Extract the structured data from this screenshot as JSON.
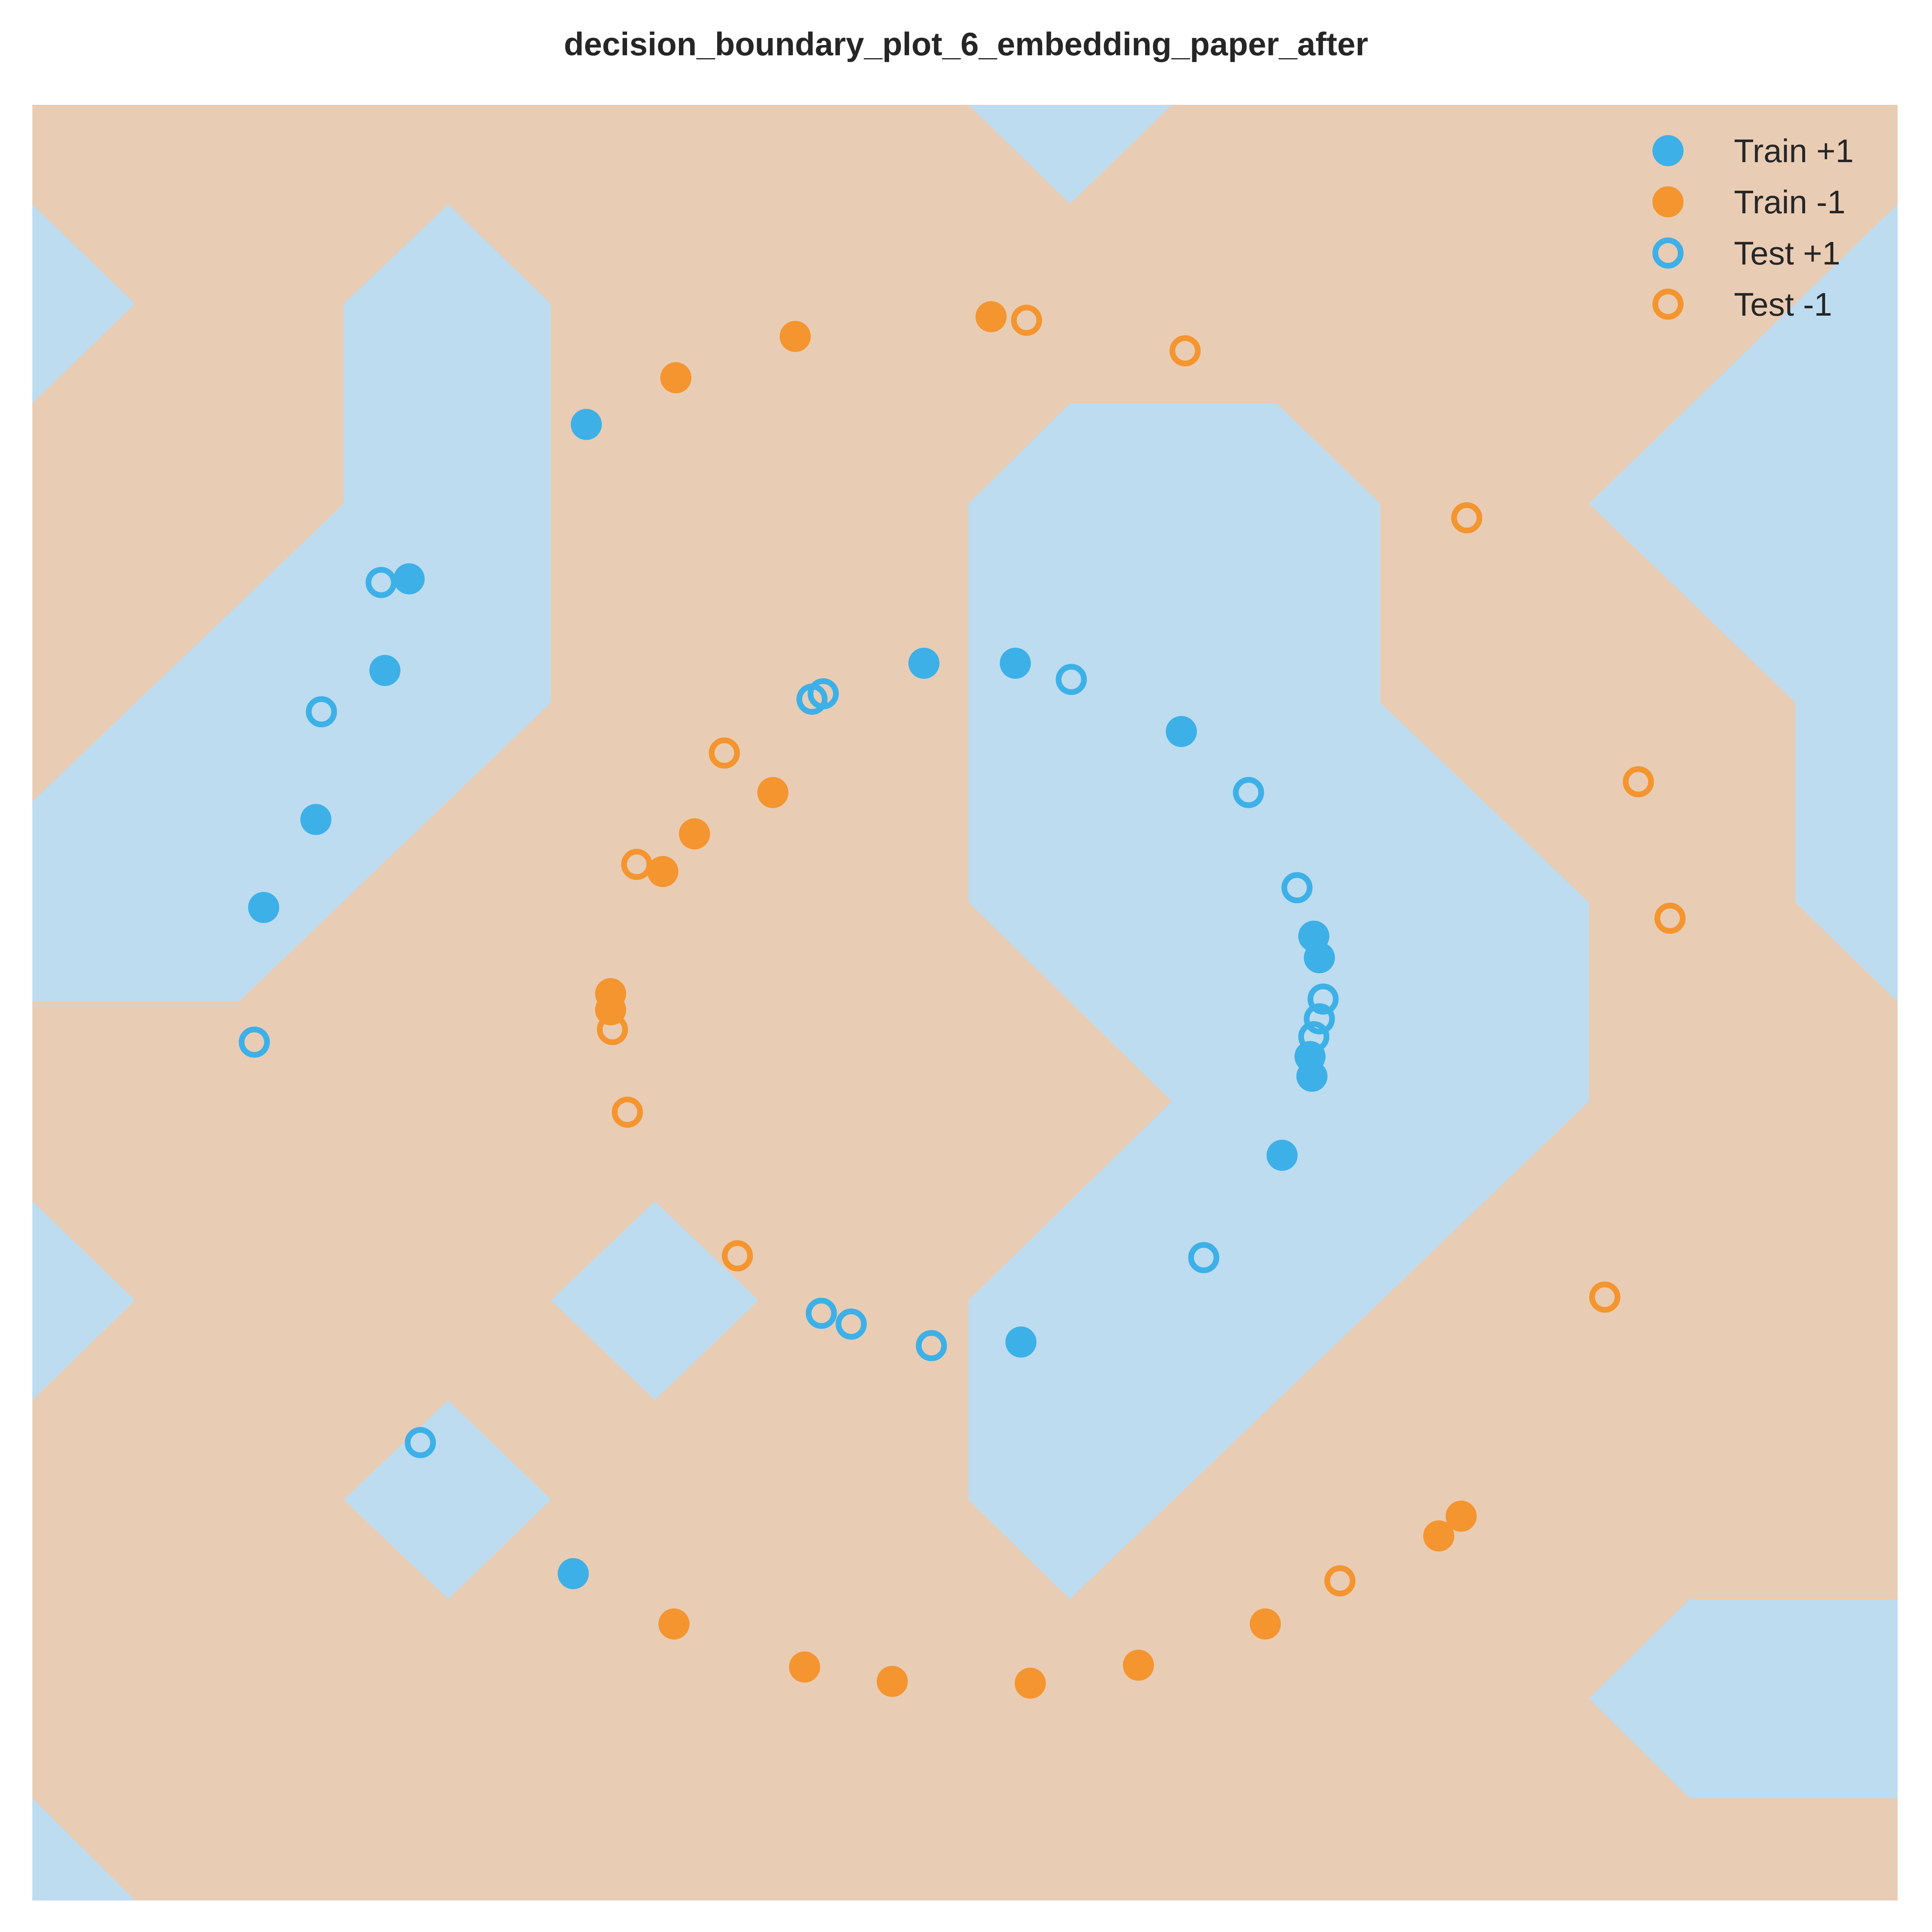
{
  "chart_data": {
    "type": "scatter",
    "title": "decision_boundary_plot_6_embedding_paper_after",
    "xlabel": "",
    "ylabel": "",
    "xlim": [
      0,
      1
    ],
    "ylim": [
      0,
      1
    ],
    "grid": false,
    "legend_position": "top-right",
    "colors": {
      "pos": "#3db0e8",
      "neg": "#f4952f",
      "region_pos": "#bddcef",
      "region_neg": "#e9ccb4"
    },
    "series": [
      {
        "name": "Train +1",
        "style": "filled",
        "class": "pos",
        "points": [
          [
            0.297,
            0.822
          ],
          [
            0.202,
            0.736
          ],
          [
            0.189,
            0.685
          ],
          [
            0.152,
            0.602
          ],
          [
            0.124,
            0.553
          ],
          [
            0.478,
            0.689
          ],
          [
            0.527,
            0.689
          ],
          [
            0.616,
            0.651
          ],
          [
            0.687,
            0.537
          ],
          [
            0.69,
            0.525
          ],
          [
            0.686,
            0.459
          ],
          [
            0.67,
            0.415
          ],
          [
            0.53,
            0.311
          ],
          [
            0.29,
            0.182
          ],
          [
            0.685,
            0.47
          ]
        ]
      },
      {
        "name": "Train -1",
        "style": "filled",
        "class": "neg",
        "points": [
          [
            0.345,
            0.848
          ],
          [
            0.409,
            0.871
          ],
          [
            0.514,
            0.882
          ],
          [
            0.397,
            0.617
          ],
          [
            0.355,
            0.594
          ],
          [
            0.338,
            0.573
          ],
          [
            0.31,
            0.505
          ],
          [
            0.31,
            0.496
          ],
          [
            0.344,
            0.154
          ],
          [
            0.414,
            0.13
          ],
          [
            0.461,
            0.122
          ],
          [
            0.535,
            0.121
          ],
          [
            0.593,
            0.131
          ],
          [
            0.661,
            0.154
          ],
          [
            0.754,
            0.203
          ],
          [
            0.766,
            0.214
          ]
        ]
      },
      {
        "name": "Test +1",
        "style": "hollow",
        "class": "pos",
        "points": [
          [
            0.187,
            0.734
          ],
          [
            0.155,
            0.662
          ],
          [
            0.424,
            0.672
          ],
          [
            0.418,
            0.669
          ],
          [
            0.557,
            0.68
          ],
          [
            0.652,
            0.617
          ],
          [
            0.678,
            0.564
          ],
          [
            0.692,
            0.502
          ],
          [
            0.69,
            0.491
          ],
          [
            0.687,
            0.481
          ],
          [
            0.628,
            0.358
          ],
          [
            0.423,
            0.327
          ],
          [
            0.439,
            0.321
          ],
          [
            0.482,
            0.309
          ],
          [
            0.119,
            0.478
          ],
          [
            0.208,
            0.255
          ]
        ]
      },
      {
        "name": "Test -1",
        "style": "hollow",
        "class": "neg",
        "points": [
          [
            0.533,
            0.88
          ],
          [
            0.618,
            0.863
          ],
          [
            0.769,
            0.77
          ],
          [
            0.861,
            0.623
          ],
          [
            0.878,
            0.547
          ],
          [
            0.371,
            0.639
          ],
          [
            0.324,
            0.577
          ],
          [
            0.311,
            0.485
          ],
          [
            0.319,
            0.439
          ],
          [
            0.378,
            0.359
          ],
          [
            0.843,
            0.336
          ],
          [
            0.701,
            0.178
          ]
        ]
      }
    ]
  }
}
